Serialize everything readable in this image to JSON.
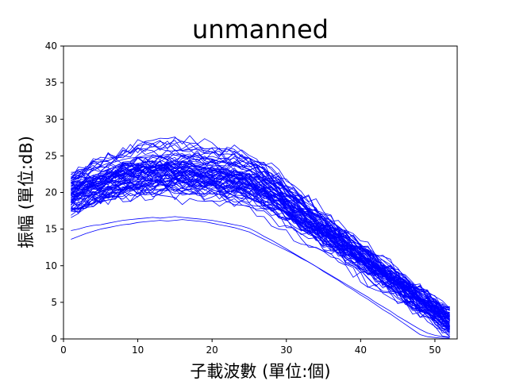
{
  "chart_data": {
    "type": "line",
    "title": "unmanned",
    "xlabel": "子載波數 (單位:個)",
    "ylabel": "振幅 (單位:dB)",
    "xlim": [
      0,
      53
    ],
    "ylim": [
      0,
      40
    ],
    "xticks": [
      0,
      10,
      20,
      30,
      40,
      50
    ],
    "yticks": [
      0,
      5,
      10,
      15,
      20,
      25,
      30,
      35,
      40
    ],
    "grid": false,
    "line_color": "#0000ff",
    "x_start": 1,
    "x_end": 52,
    "series_count": 80,
    "series": [
      {
        "values": [
          20.5,
          21.2,
          21.8,
          22.1,
          22.4,
          22.6,
          22.9,
          23.1,
          23.0,
          23.3,
          23.5,
          23.4,
          23.7,
          23.6,
          23.9,
          23.8,
          23.5,
          23.7,
          23.4,
          23.2,
          23.3,
          23.0,
          22.8,
          22.6,
          22.4,
          21.6,
          20.7,
          19.8,
          19.1,
          18.5,
          18.0,
          17.3,
          16.6,
          15.9,
          15.1,
          14.4,
          13.8,
          13.0,
          12.2,
          11.5,
          10.8,
          10.0,
          9.2,
          8.4,
          7.6,
          6.8,
          5.9,
          5.1,
          4.2,
          3.4,
          2.7,
          2.0
        ]
      },
      {
        "values": [
          18.0,
          18.6,
          19.2,
          19.7,
          20.1,
          20.6,
          20.9,
          21.2,
          21.4,
          21.7,
          21.9,
          22.0,
          22.2,
          22.3,
          22.2,
          22.4,
          22.5,
          22.3,
          22.2,
          22.0,
          21.9,
          21.7,
          21.5,
          21.2,
          20.9,
          20.3,
          19.6,
          18.9,
          18.3,
          17.6,
          17.0,
          16.4,
          15.7,
          15.0,
          14.3,
          13.6,
          12.9,
          12.2,
          11.4,
          10.7,
          10.0,
          9.2,
          8.4,
          7.7,
          6.9,
          6.1,
          5.3,
          4.5,
          3.7,
          2.9,
          2.1,
          1.4
        ]
      },
      {
        "values": [
          21.8,
          22.4,
          22.9,
          23.3,
          23.6,
          24.0,
          24.2,
          24.5,
          24.7,
          24.8,
          25.0,
          25.1,
          25.0,
          25.2,
          25.1,
          24.9,
          25.0,
          24.8,
          24.6,
          24.5,
          24.2,
          24.0,
          23.8,
          23.5,
          23.2,
          22.4,
          21.5,
          20.6,
          19.8,
          19.1,
          18.4,
          17.7,
          17.0,
          16.2,
          15.5,
          14.7,
          14.0,
          13.2,
          12.4,
          11.6,
          10.9,
          10.1,
          9.3,
          8.5,
          7.7,
          6.9,
          6.0,
          5.2,
          4.4,
          3.6,
          2.9,
          2.3
        ]
      },
      {
        "values": [
          14.8,
          15.0,
          15.3,
          15.5,
          15.6,
          15.8,
          16.0,
          16.2,
          16.3,
          16.4,
          16.5,
          16.6,
          16.5,
          16.6,
          16.7,
          16.6,
          16.5,
          16.4,
          16.3,
          16.2,
          16.0,
          15.8,
          15.6,
          15.4,
          15.1,
          14.6,
          14.0,
          13.5,
          12.9,
          12.3,
          11.7,
          11.1,
          10.5,
          9.9,
          9.2,
          8.6,
          8.0,
          7.3,
          6.7,
          6.0,
          5.4,
          4.7,
          4.0,
          3.4,
          2.7,
          2.0,
          1.3,
          0.6,
          0.3,
          0.2,
          0.1,
          0.1
        ]
      },
      {
        "values": [
          13.6,
          14.0,
          14.4,
          14.7,
          15.0,
          15.2,
          15.4,
          15.6,
          15.7,
          15.9,
          16.0,
          16.1,
          16.2,
          16.1,
          16.2,
          16.3,
          16.2,
          16.1,
          16.0,
          15.8,
          15.6,
          15.4,
          15.2,
          14.9,
          14.6,
          14.1,
          13.6,
          13.1,
          12.6,
          12.1,
          11.6,
          11.0,
          10.5,
          9.9,
          9.3,
          8.7,
          8.1,
          7.5,
          6.9,
          6.3,
          5.7,
          5.0,
          4.4,
          3.8,
          3.1,
          2.5,
          1.9,
          1.3,
          0.8,
          0.5,
          0.3,
          0.2
        ]
      }
    ]
  }
}
